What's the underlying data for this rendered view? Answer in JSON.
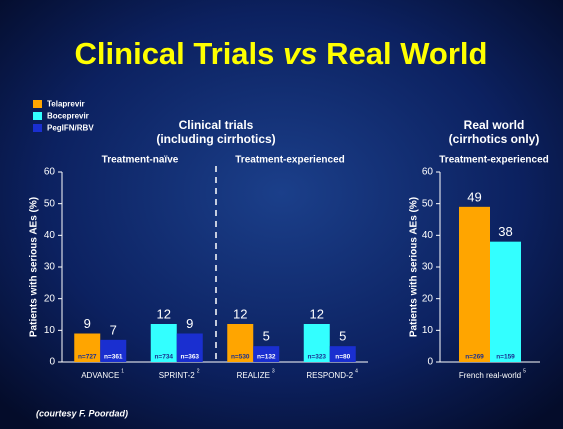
{
  "title_parts": [
    "Clinical Trials ",
    "vs",
    " Real World"
  ],
  "footer": "(courtesy F. Poordad)",
  "chart_data": [
    {
      "type": "bar",
      "title": [
        "Clinical trials",
        "(including cirrhotics)"
      ],
      "groups": [
        "Treatment-naïve",
        "Treatment-experienced"
      ],
      "categories": [
        "ADVANCE",
        "SPRINT-2",
        "REALIZE",
        "RESPOND-2"
      ],
      "category_notes": [
        "1",
        "2",
        "3",
        "4"
      ],
      "ylabel": "Patients with serious AEs (%)",
      "ylim": [
        0,
        60
      ],
      "yticks": [
        0,
        10,
        20,
        30,
        40,
        50,
        60
      ],
      "legend": "top-left",
      "series": [
        {
          "name": "Telaprevir",
          "color": "#ffa500",
          "values": [
            9,
            null,
            12,
            null
          ],
          "n_labels": [
            "n=727",
            null,
            "n=530",
            null
          ]
        },
        {
          "name": "Boceprevir",
          "color": "#33ffff",
          "values": [
            null,
            12,
            null,
            12
          ],
          "n_labels": [
            null,
            "n=734",
            null,
            "n=323"
          ]
        },
        {
          "name": "PegIFN/RBV",
          "color": "#1a2fd0",
          "values": [
            7,
            9,
            5,
            5
          ],
          "n_labels": [
            "n=361",
            "n=363",
            "n=132",
            "n=80"
          ]
        }
      ]
    },
    {
      "type": "bar",
      "title": [
        "Real world",
        "(cirrhotics only)"
      ],
      "groups": [
        "Treatment-experienced"
      ],
      "categories": [
        "French real-world"
      ],
      "category_notes": [
        "5"
      ],
      "ylabel": "Patients with serious AEs (%)",
      "ylim": [
        0,
        60
      ],
      "yticks": [
        0,
        10,
        20,
        30,
        40,
        50,
        60
      ],
      "series": [
        {
          "color": "#ffa500",
          "values": [
            49
          ],
          "n_labels": [
            "n=269"
          ]
        },
        {
          "color": "#33ffff",
          "values": [
            38
          ],
          "n_labels": [
            "n=159"
          ]
        }
      ]
    }
  ]
}
